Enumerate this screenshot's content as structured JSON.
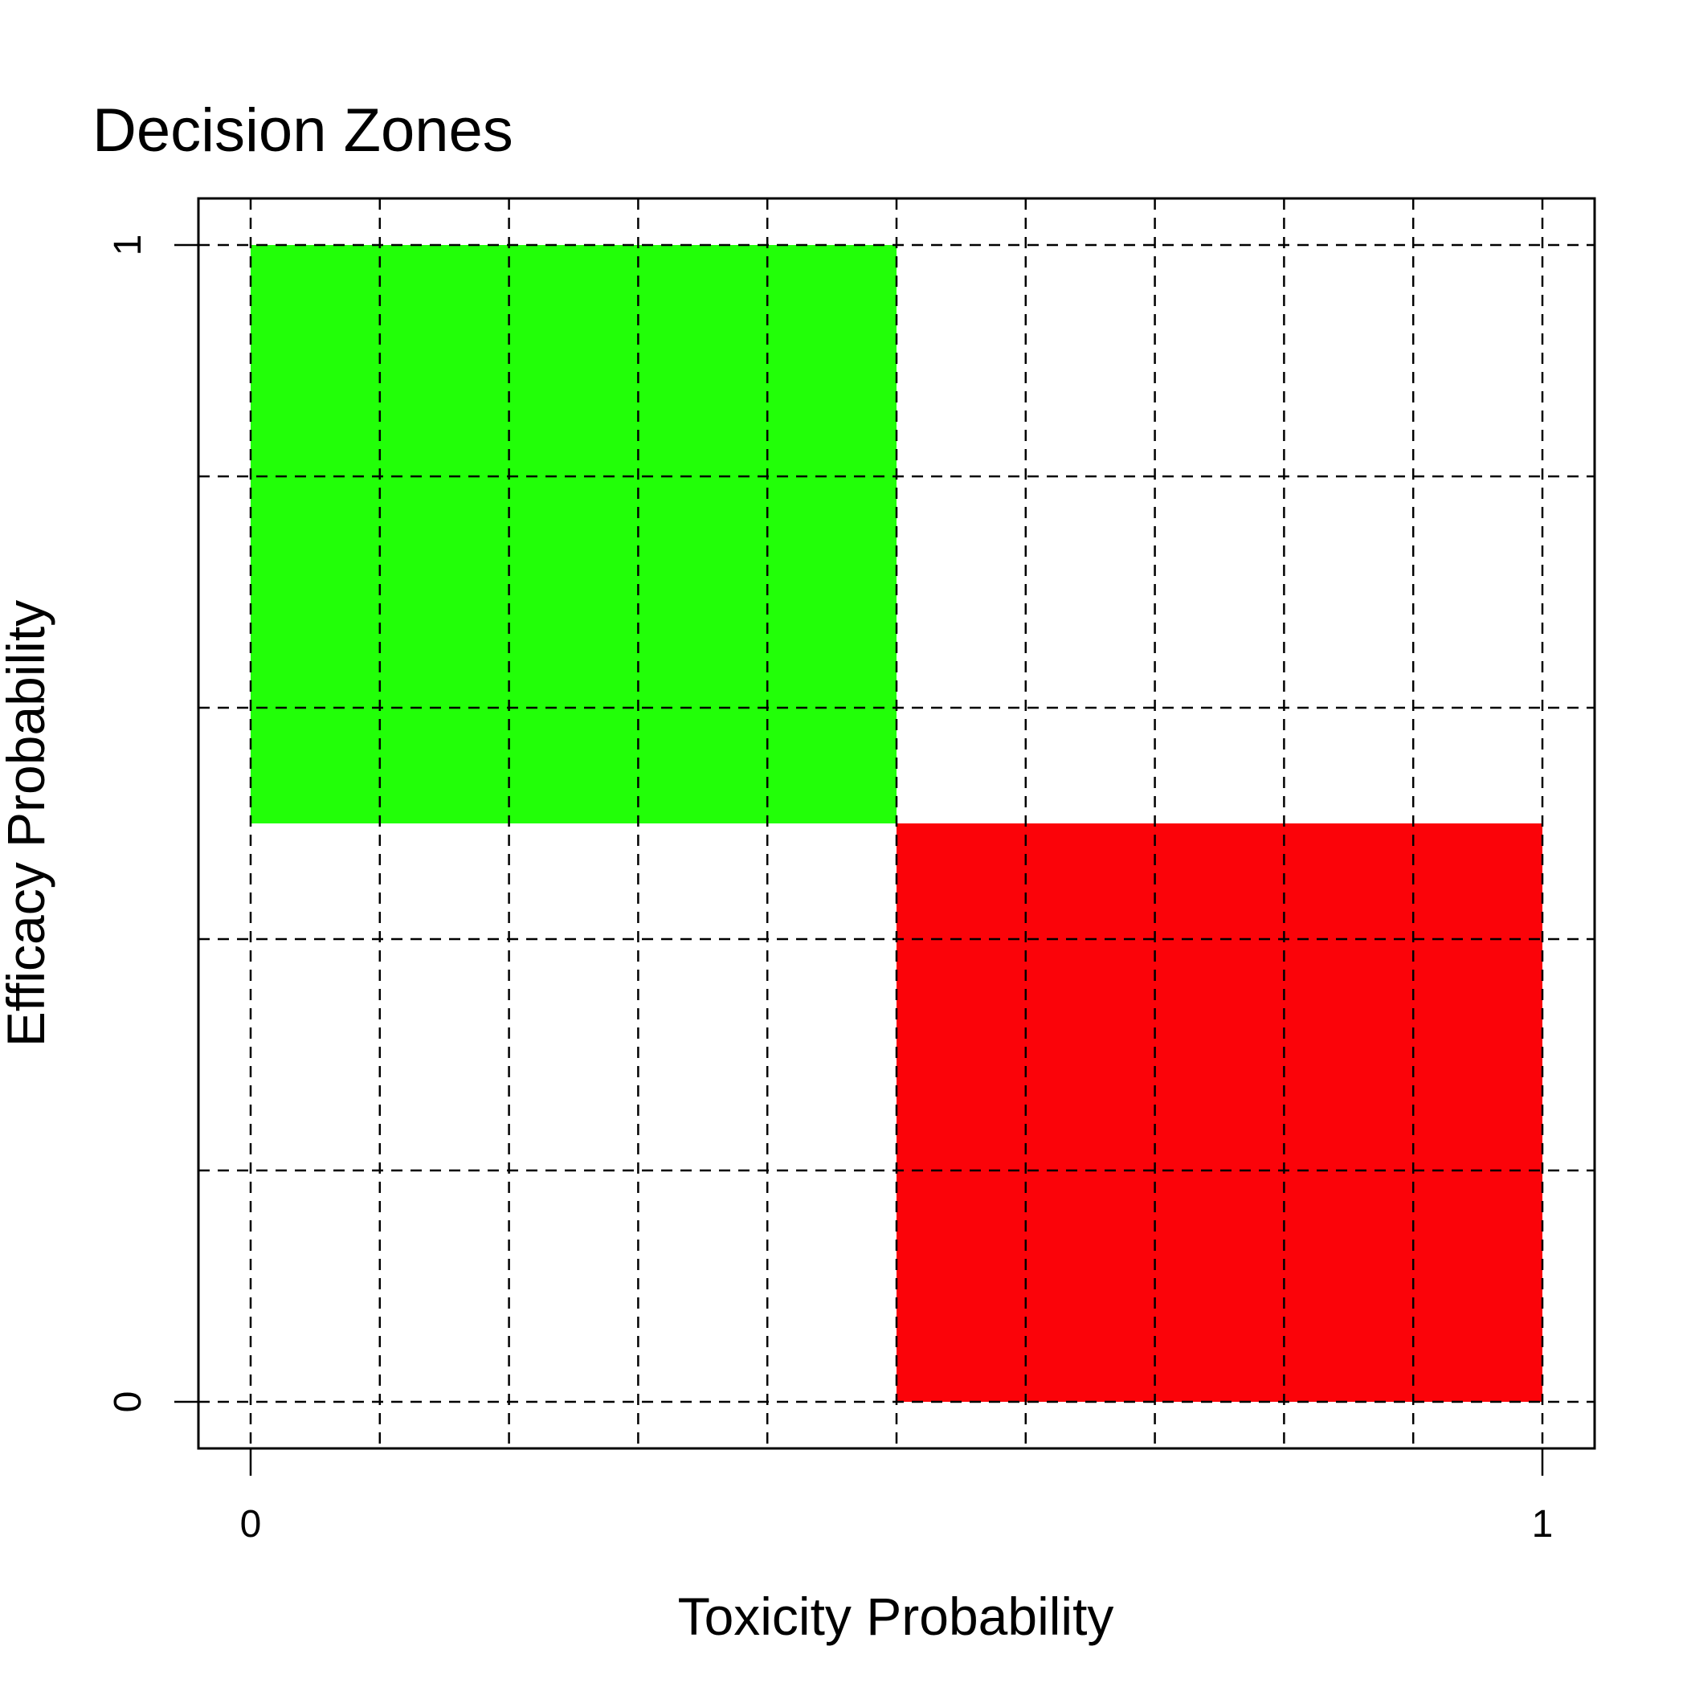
{
  "chart_data": {
    "type": "heatmap",
    "title": "Decision Zones",
    "xlabel": "Toxicity Probability",
    "ylabel": "Efficacy Probability",
    "xlim": [
      0,
      1
    ],
    "ylim": [
      0,
      1
    ],
    "x_ticks": [
      {
        "value": 0,
        "label": "0"
      },
      {
        "value": 1,
        "label": "1"
      }
    ],
    "y_ticks": [
      {
        "value": 0,
        "label": "0"
      },
      {
        "value": 1,
        "label": "1"
      }
    ],
    "grid": true,
    "grid_style": "dashed",
    "x_grid_values": [
      0,
      0.1,
      0.2,
      0.3,
      0.4,
      0.5,
      0.6,
      0.7,
      0.8,
      0.9,
      1.0
    ],
    "y_grid_values": [
      0,
      0.2,
      0.4,
      0.6,
      0.8,
      1.0
    ],
    "zones": [
      {
        "x_min": 0,
        "x_max": 0.5,
        "y_min": 0.5,
        "y_max": 1.0,
        "color": "#22ff08"
      },
      {
        "x_min": 0.5,
        "x_max": 1.0,
        "y_min": 0,
        "y_max": 0.5,
        "color": "#fb0309"
      }
    ]
  }
}
